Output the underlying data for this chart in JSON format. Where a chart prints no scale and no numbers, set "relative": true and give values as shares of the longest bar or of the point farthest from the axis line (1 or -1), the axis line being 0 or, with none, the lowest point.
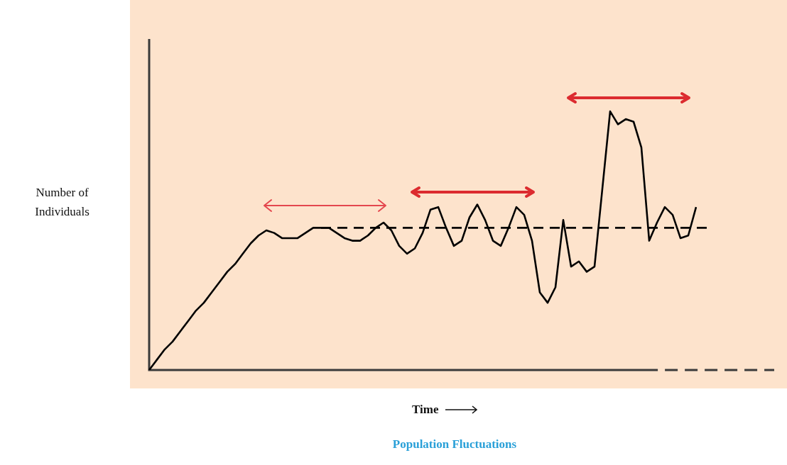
{
  "chart_data": {
    "type": "line",
    "title": "Population Fluctuations",
    "xlabel": "Time",
    "ylabel": "Number of Individuals",
    "relative": true,
    "marker": "none",
    "line_style": "solid",
    "categories": [
      null,
      null,
      null,
      null,
      null,
      null,
      null,
      null,
      null,
      null,
      null,
      null,
      null,
      null,
      null,
      null,
      null,
      null,
      null,
      null,
      null,
      null,
      null,
      null,
      null,
      null,
      null,
      null,
      null,
      null,
      null,
      null,
      null,
      null,
      null,
      null,
      null,
      null,
      null,
      null,
      null,
      null,
      null,
      null,
      null,
      null,
      null,
      null,
      null,
      null,
      null,
      null,
      null,
      null,
      null,
      null,
      null,
      null,
      null,
      null,
      null,
      null,
      null,
      null,
      null,
      null,
      null,
      null,
      null,
      null,
      null
    ],
    "series": [
      {
        "color": "#000000",
        "values": [
          0,
          0.04,
          0.08,
          0.11,
          0.15,
          0.19,
          0.23,
          0.26,
          0.3,
          0.34,
          0.38,
          0.41,
          0.45,
          0.49,
          0.52,
          0.54,
          0.53,
          0.51,
          0.51,
          0.51,
          0.53,
          0.55,
          0.55,
          0.55,
          0.53,
          0.51,
          0.5,
          0.5,
          0.52,
          0.55,
          0.57,
          0.54,
          0.48,
          0.45,
          0.47,
          0.53,
          0.62,
          0.63,
          0.55,
          0.48,
          0.5,
          0.59,
          0.64,
          0.58,
          0.5,
          0.48,
          0.55,
          0.63,
          0.6,
          0.5,
          0.3,
          0.26,
          0.32,
          0.58,
          0.4,
          0.42,
          0.38,
          0.4,
          0.7,
          1,
          0.95,
          0.97,
          0.96,
          0.86,
          0.5,
          0.57,
          0.63,
          0.6,
          0.51,
          0.52,
          0.63
        ]
      }
    ],
    "ref_lines": [
      {
        "axis": "y",
        "value": 0.55,
        "color": "#000000",
        "line_style": "dashed"
      }
    ]
  }
}
